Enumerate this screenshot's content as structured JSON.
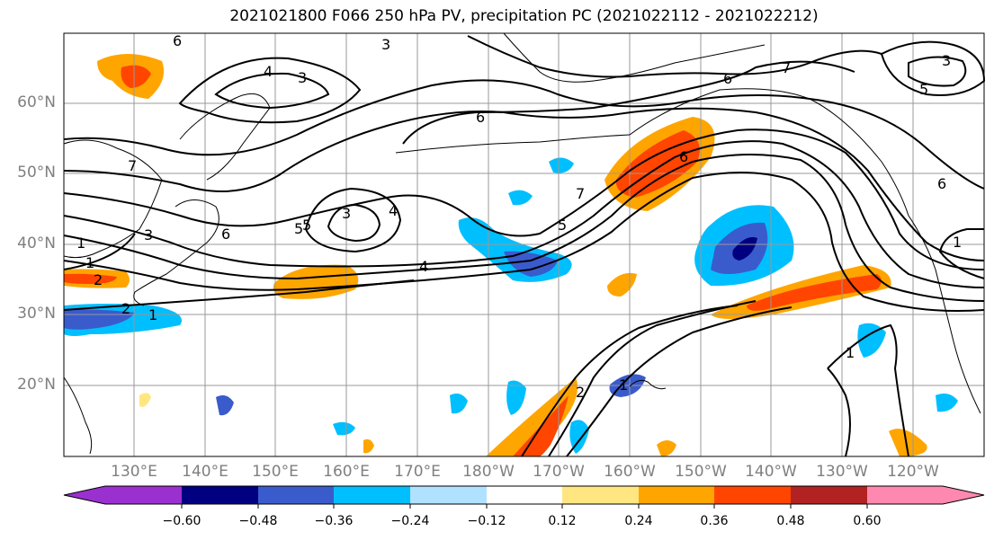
{
  "title": "2021021800 F066 250 hPa PV, precipitation PC (2021022112 - 2021022212)",
  "lat_labels": [
    "60°N",
    "50°N",
    "40°N",
    "30°N",
    "20°N"
  ],
  "lon_labels": [
    "130°E",
    "140°E",
    "150°E",
    "160°E",
    "170°E",
    "180°W",
    "170°W",
    "160°W",
    "150°W",
    "140°W",
    "130°W",
    "120°W"
  ],
  "colorbar": {
    "labels": [
      "−0.60",
      "−0.48",
      "−0.36",
      "−0.24",
      "−0.12",
      "0.12",
      "0.24",
      "0.36",
      "0.48",
      "0.60"
    ],
    "colors": [
      "#9b30d0",
      "#000080",
      "#3a5bcc",
      "#00bfff",
      "#b0e2ff",
      "#ffffff",
      "#ffe680",
      "#ffa500",
      "#ff4500",
      "#b22222",
      "#ff88b0"
    ]
  },
  "contour_labels": [
    "6",
    "3",
    "4",
    "3",
    "6",
    "7",
    "6",
    "3",
    "7",
    "5",
    "6",
    "3",
    "4",
    "5",
    "6",
    "7",
    "5",
    "4",
    "1",
    "2",
    "2",
    "1",
    "2",
    "1",
    "1",
    "1",
    "3",
    "5",
    "1",
    "6"
  ],
  "colors": {
    "neg_dark": "#000080",
    "neg_mid": "#3a5bcc",
    "neg_light": "#00bfff",
    "neg_pale": "#b0e2ff",
    "pos_pale": "#ffe680",
    "pos_light": "#ffa500",
    "pos_mid": "#ff4500",
    "pos_dark": "#b22222"
  }
}
